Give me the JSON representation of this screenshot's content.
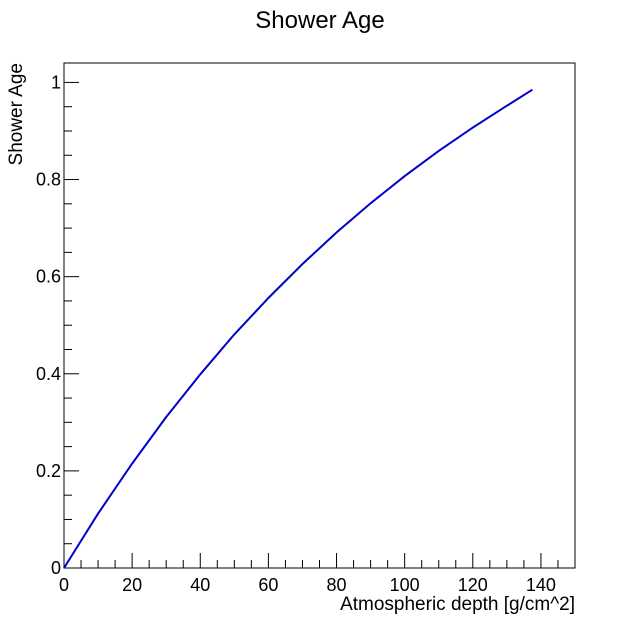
{
  "chart_data": {
    "type": "line",
    "title": "Shower Age",
    "xlabel": "Atmospheric depth [g/cm^2]",
    "ylabel": "Shower Age",
    "xlim": [
      0,
      150
    ],
    "ylim": [
      0,
      1.04
    ],
    "x_ticks": [
      "0",
      "20",
      "40",
      "60",
      "80",
      "100",
      "120",
      "140"
    ],
    "y_ticks": [
      "0",
      "0.2",
      "0.4",
      "0.6",
      "0.8",
      "1"
    ],
    "grid": false,
    "color": "#0000cc",
    "series": [
      {
        "x": [
          0,
          10,
          20,
          30,
          40,
          50,
          60,
          70,
          80,
          90,
          100,
          110,
          120,
          130,
          137.5
        ],
        "y": [
          0,
          0.112,
          0.215,
          0.311,
          0.399,
          0.481,
          0.556,
          0.626,
          0.691,
          0.751,
          0.807,
          0.859,
          0.907,
          0.952,
          0.985
        ]
      }
    ]
  }
}
